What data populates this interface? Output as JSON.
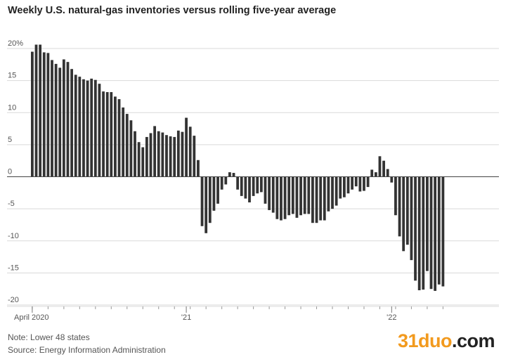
{
  "title": "Weekly U.S. natural-gas inventories versus rolling five-year average",
  "footer": {
    "note": "Note: Lower 48 states",
    "source": "Source: Energy Information Administration"
  },
  "watermark": {
    "num": "31duo",
    "suffix": ".com"
  },
  "colors": {
    "bar": "#333333",
    "grid": "#d9d9d9",
    "zero": "#444444"
  },
  "chart_data": {
    "type": "bar",
    "title": "Weekly U.S. natural-gas inventories versus rolling five-year average",
    "xlabel": "",
    "ylabel": "",
    "ylim": [
      -20,
      20
    ],
    "grid": true,
    "y_ticks": [
      {
        "value": 20,
        "label": "20%"
      },
      {
        "value": 15,
        "label": "15"
      },
      {
        "value": 10,
        "label": "10"
      },
      {
        "value": 5,
        "label": "5"
      },
      {
        "value": 0,
        "label": "0"
      },
      {
        "value": -5,
        "label": "-5"
      },
      {
        "value": -10,
        "label": "-10"
      },
      {
        "value": -15,
        "label": "-15"
      },
      {
        "value": -20,
        "label": "-20"
      }
    ],
    "x_ticks": [
      {
        "index": 0,
        "label": "April 2020"
      },
      {
        "index": 39,
        "label": "'21"
      },
      {
        "index": 91,
        "label": "'22"
      }
    ],
    "values": [
      19.5,
      20.6,
      20.6,
      19.4,
      19.3,
      18.2,
      17.6,
      17.0,
      18.3,
      17.9,
      16.8,
      15.9,
      15.6,
      15.2,
      15.0,
      15.3,
      15.1,
      14.5,
      13.3,
      13.2,
      13.2,
      12.5,
      12.1,
      10.8,
      9.8,
      8.8,
      7.1,
      5.4,
      4.6,
      6.2,
      6.8,
      7.9,
      7.1,
      6.9,
      6.5,
      6.3,
      6.2,
      7.2,
      7.0,
      9.2,
      7.8,
      6.4,
      2.6,
      -7.7,
      -8.8,
      -7.2,
      -5.3,
      -4.2,
      -2.0,
      -1.2,
      0.7,
      0.6,
      -2.0,
      -3.0,
      -3.4,
      -4.0,
      -3.0,
      -2.6,
      -2.4,
      -4.2,
      -5.2,
      -5.6,
      -6.6,
      -6.8,
      -6.6,
      -6.0,
      -5.8,
      -6.4,
      -6.0,
      -5.8,
      -5.8,
      -7.2,
      -7.2,
      -6.8,
      -6.8,
      -5.4,
      -5.0,
      -4.5,
      -3.4,
      -3.2,
      -2.6,
      -2.0,
      -1.5,
      -2.3,
      -2.2,
      -1.6,
      1.1,
      0.7,
      3.2,
      2.5,
      1.2,
      -0.9,
      -6.0,
      -9.3,
      -11.6,
      -10.6,
      -13.0,
      -16.2,
      -17.7,
      -17.6,
      -14.7,
      -17.5,
      -17.8,
      -16.8,
      -17.1
    ]
  }
}
